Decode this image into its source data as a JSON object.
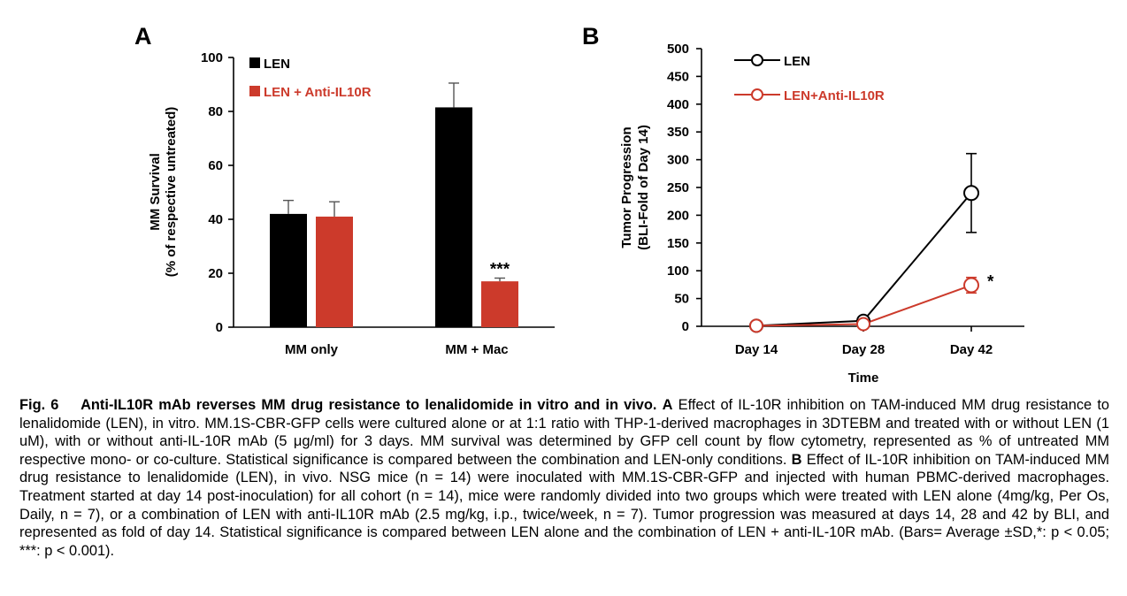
{
  "chart_data": [
    {
      "panel": "A",
      "type": "bar",
      "ylabel_line1": "MM Survival",
      "ylabel_line2": "(% of respective untreated)",
      "xlabel": "",
      "ylim": [
        0,
        100
      ],
      "yticks": [
        0,
        20,
        40,
        60,
        80,
        100
      ],
      "categories": [
        "MM only",
        "MM + Mac"
      ],
      "series": [
        {
          "name": "LEN",
          "color": "#000000",
          "values": [
            42,
            81.5
          ],
          "errors": [
            5,
            9
          ]
        },
        {
          "name": "LEN + Anti-IL10R",
          "color": "#cc3a2b",
          "values": [
            41,
            17
          ],
          "errors": [
            5.5,
            1.2
          ]
        }
      ],
      "annotations": [
        {
          "category": "MM + Mac",
          "series": "LEN + Anti-IL10R",
          "text": "***"
        }
      ],
      "legend_position": "top-left",
      "grid": false
    },
    {
      "panel": "B",
      "type": "line",
      "ylabel_line1": "Tumor Progression",
      "ylabel_line2": "(BLI-Fold of Day 14)",
      "xlabel": "Time",
      "ylim": [
        0,
        500
      ],
      "yticks": [
        0,
        50,
        100,
        150,
        200,
        250,
        300,
        350,
        400,
        450,
        500
      ],
      "categories": [
        "Day 14",
        "Day 28",
        "Day 42"
      ],
      "series": [
        {
          "name": "LEN",
          "color": "#000000",
          "values": [
            1,
            10,
            240
          ],
          "errors": [
            0,
            0,
            71
          ]
        },
        {
          "name": "LEN+Anti-IL10R",
          "color": "#cc3a2b",
          "values": [
            1,
            4,
            74
          ],
          "errors": [
            0,
            0,
            14
          ]
        }
      ],
      "annotations": [
        {
          "category": "Day 42",
          "series": "LEN+Anti-IL10R",
          "text": "*"
        }
      ],
      "legend_position": "top-left",
      "grid": false
    }
  ],
  "caption": {
    "fig_label": "Fig. 6",
    "title": "Anti-IL10R mAb reverses MM drug resistance to lenalidomide in vitro and in vivo.",
    "part_a_label": "A",
    "part_a_text": "Effect of IL-10R inhibition on TAM-induced MM drug resistance to lenalidomide (LEN), in vitro. MM.1S-CBR-GFP cells were cultured alone or at 1:1 ratio with THP-1-derived macrophages in 3DTEBM and treated with or without LEN (1 uM), with or without anti-IL-10R mAb (5 μg/ml) for 3 days. MM survival was determined by GFP cell count by flow cytometry, represented as % of untreated MM respective mono- or co-culture. Statistical significance is compared between the combination and LEN-only conditions.",
    "part_b_label": "B",
    "part_b_text": "Effect of IL-10R inhibition on TAM-induced MM drug resistance to lenalidomide (LEN), in vivo. NSG mice (n = 14) were inoculated with MM.1S-CBR-GFP and injected with human PBMC-derived macrophages. Treatment started at day 14 post-inoculation) for all cohort (n = 14), mice were randomly divided into two groups which were treated with LEN alone (4mg/kg, Per Os, Daily, n = 7), or a combination of LEN with anti-IL10R mAb (2.5 mg/kg, i.p., twice/week, n = 7). Tumor progression was measured at days 14, 28 and 42 by BLI, and represented as fold of day 14. Statistical significance is compared between LEN alone and the combination of LEN + anti-IL-10R mAb. (Bars= Average ±SD,*: p < 0.05; ***: p < 0.001)."
  }
}
